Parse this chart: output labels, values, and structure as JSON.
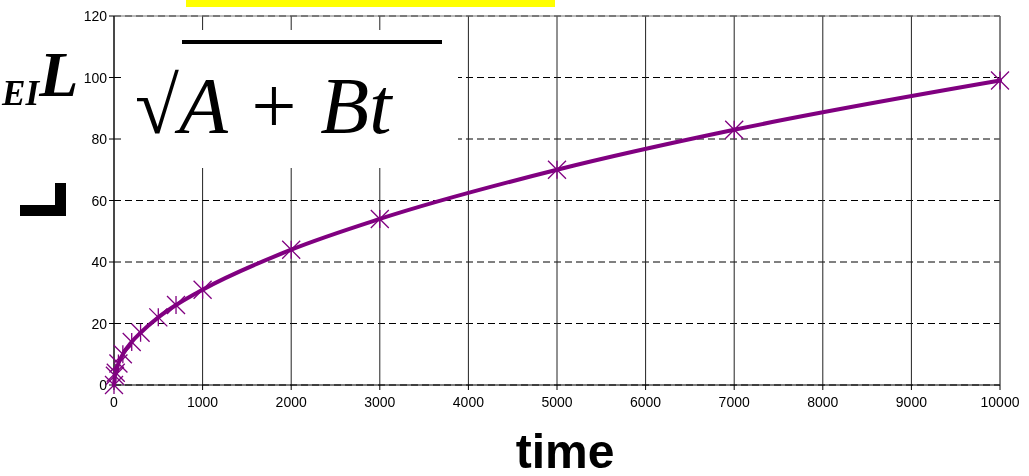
{
  "chart_data": {
    "type": "line",
    "xlabel": "time",
    "annotations": [
      "$_{EI}$L",
      "√A + Bt"
    ],
    "x": [
      0,
      10,
      20,
      50,
      100,
      200,
      300,
      500,
      700,
      1000,
      2000,
      3000,
      5000,
      7000,
      10000
    ],
    "series": [
      {
        "color": "#800080",
        "values": [
          0,
          3,
          4,
          7,
          10,
          14,
          17,
          22,
          26,
          31,
          44,
          54,
          70,
          83,
          99
        ]
      }
    ],
    "xlim": [
      0,
      10000
    ],
    "xticks": [
      0,
      1000,
      2000,
      3000,
      4000,
      5000,
      6000,
      7000,
      8000,
      9000,
      10000
    ],
    "ylim": [
      0,
      120
    ],
    "yticks": [
      0,
      20,
      40,
      60,
      80,
      100,
      120
    ],
    "grid": true,
    "marker": "cross",
    "line_style": "solid"
  }
}
